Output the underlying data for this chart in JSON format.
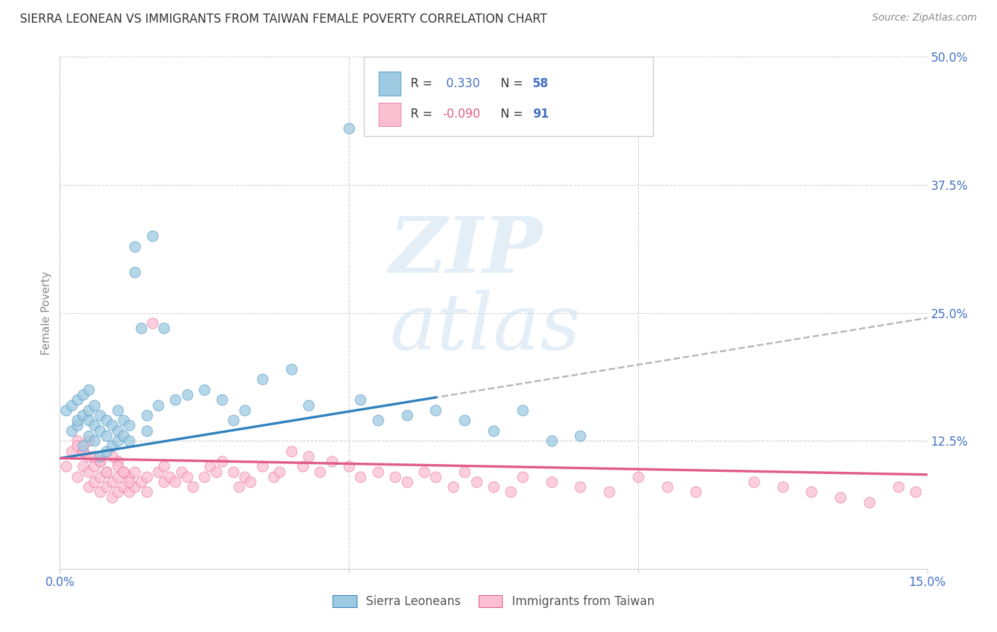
{
  "title": "SIERRA LEONEAN VS IMMIGRANTS FROM TAIWAN FEMALE POVERTY CORRELATION CHART",
  "source": "Source: ZipAtlas.com",
  "ylabel": "Female Poverty",
  "x_min": 0.0,
  "x_max": 0.15,
  "y_min": 0.0,
  "y_max": 0.5,
  "grid_color": "#cccccc",
  "background_color": "#ffffff",
  "color_blue": "#9ecae1",
  "color_blue_line": "#3182bd",
  "color_pink": "#fcbfd2",
  "color_pink_line": "#e05c8a",
  "color_text_blue": "#4472c4",
  "color_text_pink": "#e05c8a",
  "blue_x": [
    0.001,
    0.002,
    0.002,
    0.003,
    0.003,
    0.003,
    0.004,
    0.004,
    0.004,
    0.005,
    0.005,
    0.005,
    0.005,
    0.006,
    0.006,
    0.006,
    0.007,
    0.007,
    0.007,
    0.008,
    0.008,
    0.008,
    0.009,
    0.009,
    0.01,
    0.01,
    0.01,
    0.011,
    0.011,
    0.012,
    0.012,
    0.013,
    0.013,
    0.014,
    0.015,
    0.015,
    0.016,
    0.017,
    0.018,
    0.02,
    0.022,
    0.025,
    0.028,
    0.03,
    0.032,
    0.035,
    0.04,
    0.043,
    0.05,
    0.052,
    0.055,
    0.06,
    0.065,
    0.07,
    0.075,
    0.08,
    0.085,
    0.09
  ],
  "blue_y": [
    0.155,
    0.135,
    0.16,
    0.14,
    0.145,
    0.165,
    0.12,
    0.15,
    0.17,
    0.13,
    0.145,
    0.155,
    0.175,
    0.125,
    0.14,
    0.16,
    0.11,
    0.135,
    0.15,
    0.115,
    0.13,
    0.145,
    0.12,
    0.14,
    0.125,
    0.135,
    0.155,
    0.13,
    0.145,
    0.125,
    0.14,
    0.29,
    0.315,
    0.235,
    0.135,
    0.15,
    0.325,
    0.16,
    0.235,
    0.165,
    0.17,
    0.175,
    0.165,
    0.145,
    0.155,
    0.185,
    0.195,
    0.16,
    0.43,
    0.165,
    0.145,
    0.15,
    0.155,
    0.145,
    0.135,
    0.155,
    0.125,
    0.13
  ],
  "pink_x": [
    0.001,
    0.002,
    0.003,
    0.003,
    0.004,
    0.004,
    0.005,
    0.005,
    0.005,
    0.006,
    0.006,
    0.007,
    0.007,
    0.007,
    0.008,
    0.008,
    0.009,
    0.009,
    0.01,
    0.01,
    0.01,
    0.011,
    0.011,
    0.012,
    0.012,
    0.013,
    0.013,
    0.014,
    0.015,
    0.015,
    0.016,
    0.017,
    0.018,
    0.018,
    0.019,
    0.02,
    0.021,
    0.022,
    0.023,
    0.025,
    0.026,
    0.027,
    0.028,
    0.03,
    0.031,
    0.032,
    0.033,
    0.035,
    0.037,
    0.038,
    0.04,
    0.042,
    0.043,
    0.045,
    0.047,
    0.05,
    0.052,
    0.055,
    0.058,
    0.06,
    0.063,
    0.065,
    0.068,
    0.07,
    0.072,
    0.075,
    0.078,
    0.08,
    0.085,
    0.09,
    0.095,
    0.1,
    0.105,
    0.11,
    0.12,
    0.125,
    0.13,
    0.135,
    0.14,
    0.145,
    0.148,
    0.003,
    0.004,
    0.005,
    0.006,
    0.007,
    0.008,
    0.009,
    0.01,
    0.011,
    0.012
  ],
  "pink_y": [
    0.1,
    0.115,
    0.09,
    0.125,
    0.1,
    0.115,
    0.08,
    0.095,
    0.11,
    0.085,
    0.1,
    0.075,
    0.09,
    0.105,
    0.08,
    0.095,
    0.07,
    0.085,
    0.075,
    0.09,
    0.105,
    0.08,
    0.095,
    0.075,
    0.09,
    0.08,
    0.095,
    0.085,
    0.075,
    0.09,
    0.24,
    0.095,
    0.085,
    0.1,
    0.09,
    0.085,
    0.095,
    0.09,
    0.08,
    0.09,
    0.1,
    0.095,
    0.105,
    0.095,
    0.08,
    0.09,
    0.085,
    0.1,
    0.09,
    0.095,
    0.115,
    0.1,
    0.11,
    0.095,
    0.105,
    0.1,
    0.09,
    0.095,
    0.09,
    0.085,
    0.095,
    0.09,
    0.08,
    0.095,
    0.085,
    0.08,
    0.075,
    0.09,
    0.085,
    0.08,
    0.075,
    0.09,
    0.08,
    0.075,
    0.085,
    0.08,
    0.075,
    0.07,
    0.065,
    0.08,
    0.075,
    0.12,
    0.115,
    0.125,
    0.11,
    0.105,
    0.095,
    0.11,
    0.1,
    0.095,
    0.085
  ],
  "blue_line_x0": 0.0,
  "blue_line_x1": 0.15,
  "blue_line_y0": 0.108,
  "blue_line_y1": 0.245,
  "pink_line_x0": 0.0,
  "pink_line_x1": 0.15,
  "pink_line_y0": 0.108,
  "pink_line_y1": 0.092
}
